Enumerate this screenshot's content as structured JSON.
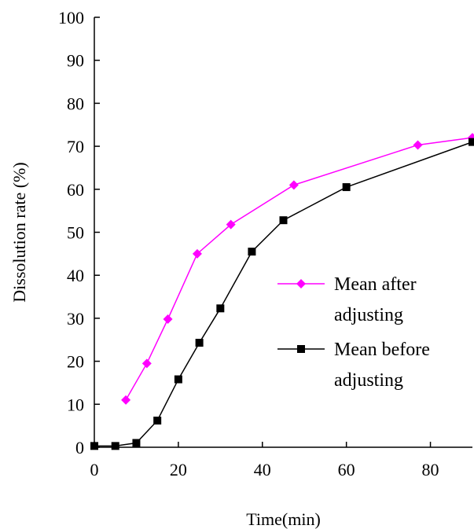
{
  "chart_data": {
    "type": "line",
    "title": "",
    "xlabel": "Time(min)",
    "ylabel": "Dissolution rate (%)",
    "xlim": [
      0,
      90
    ],
    "ylim": [
      0,
      100
    ],
    "x_ticks": [
      0,
      20,
      40,
      60,
      80
    ],
    "y_ticks": [
      0,
      10,
      20,
      30,
      40,
      50,
      60,
      70,
      80,
      90,
      100
    ],
    "grid": false,
    "legend_position": "right",
    "series": [
      {
        "name": "Mean after adjusting",
        "legend_lines": [
          "Mean after",
          "adjusting"
        ],
        "color": "#ff00ff",
        "marker": "diamond",
        "points": [
          [
            7.5,
            11
          ],
          [
            12.5,
            19.5
          ],
          [
            17.5,
            29.8
          ],
          [
            24.5,
            45
          ],
          [
            32.5,
            51.8
          ],
          [
            47.5,
            61
          ],
          [
            77,
            70.3
          ],
          [
            90,
            72
          ]
        ]
      },
      {
        "name": "Mean before adjusting",
        "legend_lines": [
          "Mean before",
          "adjusting"
        ],
        "color": "#000000",
        "marker": "square",
        "points": [
          [
            0,
            0.3
          ],
          [
            5,
            0.3
          ],
          [
            10,
            1
          ],
          [
            15,
            6.2
          ],
          [
            20,
            15.8
          ],
          [
            25,
            24.3
          ],
          [
            30,
            32.3
          ],
          [
            37.5,
            45.5
          ],
          [
            45,
            52.8
          ],
          [
            60,
            60.5
          ],
          [
            90,
            71
          ]
        ]
      }
    ]
  }
}
